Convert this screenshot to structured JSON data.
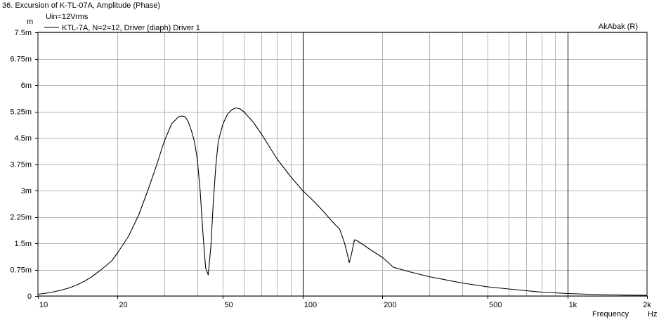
{
  "chart_data": {
    "type": "line",
    "title": "36. Excursion of K-TL-07A, Amplitude (Phase)",
    "subtitle": "Uin=12Vrms",
    "watermark": "AkAbak (R)",
    "xlabel": "Frequency",
    "xunit": "Hz",
    "yunit": "m",
    "xscale": "log",
    "xlim": [
      10,
      2000
    ],
    "ylim": [
      0,
      0.0075
    ],
    "grid": true,
    "legend_position": "top-left",
    "x_ticks": [
      {
        "value": 10,
        "label": "10"
      },
      {
        "value": 20,
        "label": "20"
      },
      {
        "value": 50,
        "label": "50"
      },
      {
        "value": 100,
        "label": "100"
      },
      {
        "value": 200,
        "label": "200"
      },
      {
        "value": 500,
        "label": "500"
      },
      {
        "value": 1000,
        "label": "1k"
      },
      {
        "value": 2000,
        "label": "2k"
      }
    ],
    "y_ticks": [
      {
        "value": 0.0075,
        "label": "7.5m"
      },
      {
        "value": 0.00675,
        "label": "6.75m"
      },
      {
        "value": 0.006,
        "label": "6m"
      },
      {
        "value": 0.00525,
        "label": "5.25m"
      },
      {
        "value": 0.0045,
        "label": "4.5m"
      },
      {
        "value": 0.00375,
        "label": "3.75m"
      },
      {
        "value": 0.003,
        "label": "3m"
      },
      {
        "value": 0.00225,
        "label": "2.25m"
      },
      {
        "value": 0.0015,
        "label": "1.5m"
      },
      {
        "value": 0.00075,
        "label": "0.75m"
      },
      {
        "value": 0,
        "label": "0"
      }
    ],
    "series": [
      {
        "name": "KTL-7A, N=2=12, Driver (diaph) Driver 1",
        "color": "#000000",
        "points": [
          [
            10,
            5e-05
          ],
          [
            11,
            9e-05
          ],
          [
            12,
            0.00015
          ],
          [
            13,
            0.00022
          ],
          [
            14,
            0.00031
          ],
          [
            15,
            0.00042
          ],
          [
            16,
            0.00055
          ],
          [
            17,
            0.0007
          ],
          [
            18,
            0.00085
          ],
          [
            19,
            0.001
          ],
          [
            20,
            0.00123
          ],
          [
            22,
            0.0017
          ],
          [
            24,
            0.0023
          ],
          [
            26,
            0.003
          ],
          [
            28,
            0.0037
          ],
          [
            30,
            0.0044
          ],
          [
            32,
            0.0049
          ],
          [
            34,
            0.0051
          ],
          [
            35,
            0.00512
          ],
          [
            36,
            0.0051
          ],
          [
            37,
            0.00495
          ],
          [
            38,
            0.0047
          ],
          [
            39,
            0.0044
          ],
          [
            40,
            0.0039
          ],
          [
            41,
            0.003
          ],
          [
            42,
            0.0018
          ],
          [
            43,
            0.0008
          ],
          [
            44,
            0.0006
          ],
          [
            45,
            0.0014
          ],
          [
            46,
            0.0027
          ],
          [
            47,
            0.0037
          ],
          [
            48,
            0.0044
          ],
          [
            50,
            0.0049
          ],
          [
            52,
            0.00517
          ],
          [
            54,
            0.0053
          ],
          [
            56,
            0.00535
          ],
          [
            58,
            0.00532
          ],
          [
            60,
            0.00524
          ],
          [
            65,
            0.00495
          ],
          [
            70,
            0.0046
          ],
          [
            80,
            0.0039
          ],
          [
            90,
            0.0034
          ],
          [
            100,
            0.003
          ],
          [
            110,
            0.0027
          ],
          [
            120,
            0.0024
          ],
          [
            130,
            0.0021
          ],
          [
            138,
            0.0019
          ],
          [
            144,
            0.0015
          ],
          [
            148,
            0.00115
          ],
          [
            150,
            0.00095
          ],
          [
            153,
            0.0012
          ],
          [
            157,
            0.0016
          ],
          [
            160,
            0.00158
          ],
          [
            170,
            0.00145
          ],
          [
            180,
            0.00132
          ],
          [
            200,
            0.0011
          ],
          [
            220,
            0.00082
          ],
          [
            250,
            0.0007
          ],
          [
            300,
            0.00055
          ],
          [
            400,
            0.00037
          ],
          [
            500,
            0.00026
          ],
          [
            600,
            0.0002
          ],
          [
            700,
            0.00015
          ],
          [
            800,
            0.00011
          ],
          [
            1000,
            7e-05
          ],
          [
            1200,
            5e-05
          ],
          [
            1500,
            3e-05
          ],
          [
            2000,
            2e-05
          ]
        ]
      }
    ]
  }
}
